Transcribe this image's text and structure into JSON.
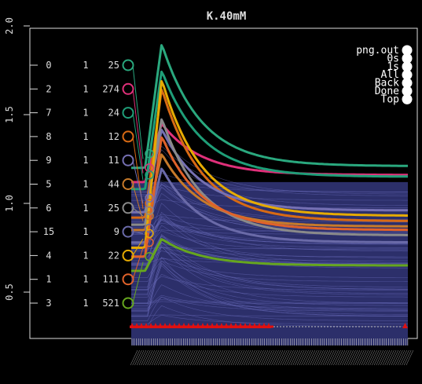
{
  "window": {
    "title": "K.40mM"
  },
  "axis": {
    "y_ticks": [
      "0.5",
      "1.0",
      "1.5",
      "2.0"
    ],
    "y_values": [
      0.5,
      1.0,
      1.5,
      2.0
    ],
    "ylim": [
      0.18,
      2.05
    ]
  },
  "menu": {
    "items": [
      {
        "label": "png.out"
      },
      {
        "label": "0s"
      },
      {
        "label": "1s"
      },
      {
        "label": "All"
      },
      {
        "label": "Back"
      },
      {
        "label": "Done"
      },
      {
        "label": "Top"
      }
    ]
  },
  "cells": [
    {
      "id": "0",
      "col2": "1",
      "col3": "25",
      "color": "#2aa87e"
    },
    {
      "id": "2",
      "col2": "1",
      "col3": "274",
      "color": "#e0307a"
    },
    {
      "id": "7",
      "col2": "1",
      "col3": "24",
      "color": "#1f9e78"
    },
    {
      "id": "8",
      "col2": "1",
      "col3": "12",
      "color": "#d86a14"
    },
    {
      "id": "9",
      "col2": "1",
      "col3": "11",
      "color": "#7570b3"
    },
    {
      "id": "5",
      "col2": "1",
      "col3": "44",
      "color": "#c77a2a"
    },
    {
      "id": "6",
      "col2": "1",
      "col3": "25",
      "color": "#8a8a8a"
    },
    {
      "id": "15",
      "col2": "1",
      "col3": "9",
      "color": "#6a6aa8"
    },
    {
      "id": "4",
      "col2": "1",
      "col3": "22",
      "color": "#e6ab02"
    },
    {
      "id": "1",
      "col2": "1",
      "col3": "111",
      "color": "#e0622a"
    },
    {
      "id": "3",
      "col2": "1",
      "col3": "521",
      "color": "#66a61e"
    }
  ],
  "colors": {
    "background": "#000000",
    "trace_bundle": "#5a5ea8",
    "marker": "#e01010",
    "axis": "#dddddd"
  }
}
